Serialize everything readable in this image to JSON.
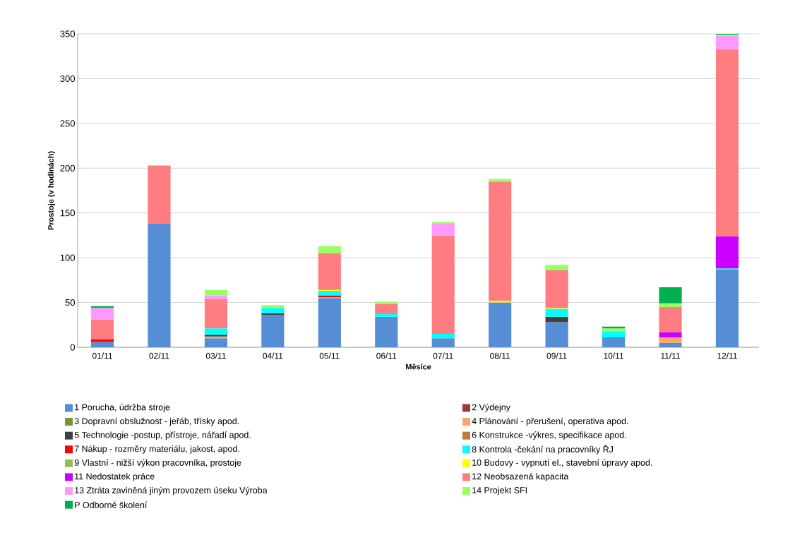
{
  "chart_data": {
    "type": "bar",
    "stacked": true,
    "xlabel": "Měsíce",
    "ylabel": "Prostoje  (v hodinách)",
    "categories": [
      "01/11",
      "02/11",
      "03/11",
      "04/11",
      "05/11",
      "06/11",
      "07/11",
      "08/11",
      "09/11",
      "10/11",
      "11/11",
      "12/11"
    ],
    "ylim": [
      0,
      350
    ],
    "yticks": [
      0,
      50,
      100,
      150,
      200,
      250,
      300,
      350
    ],
    "grid": "y",
    "legend": "bottom",
    "series": [
      {
        "name": "1 Porucha,  údržba stroje",
        "color": "#558ed5",
        "values": [
          6,
          138,
          10,
          36,
          55,
          34,
          10,
          50,
          28,
          11,
          5,
          87
        ]
      },
      {
        "name": "2 Výdejny",
        "color": "#9b3b3b",
        "values": [
          null,
          null,
          null,
          null,
          null,
          null,
          null,
          null,
          null,
          null,
          null,
          null
        ]
      },
      {
        "name": "3 Dopravní obslužnost  - jeřáb,  třísky apod.",
        "color": "#77933c",
        "values": [
          null,
          null,
          null,
          null,
          null,
          null,
          null,
          null,
          null,
          null,
          null,
          null
        ]
      },
      {
        "name": "4 Plánování  - přerušení,  operativa apod.",
        "color": "#f9a66c",
        "values": [
          null,
          null,
          2,
          null,
          1,
          null,
          null,
          null,
          null,
          null,
          6,
          null
        ]
      },
      {
        "name": "5 Technologie  -postup, přístroje,  nářadí apod.",
        "color": "#404040",
        "values": [
          null,
          null,
          2,
          2,
          null,
          null,
          null,
          null,
          6,
          null,
          null,
          null
        ]
      },
      {
        "name": "6 Konstrukce  -výkres,  specifikace apod.",
        "color": "#c0783c",
        "values": [
          null,
          null,
          null,
          null,
          null,
          null,
          null,
          null,
          null,
          null,
          null,
          null
        ]
      },
      {
        "name": "7 Nákup  - rozměry materiálu,  jakost, apod.",
        "color": "#ff0000",
        "values": [
          3,
          null,
          null,
          null,
          2,
          null,
          null,
          null,
          null,
          null,
          null,
          null
        ]
      },
      {
        "name": "8 Kontrola  -čekání  na pracovníky  ŘJ",
        "color": "#00ffff",
        "values": [
          null,
          null,
          7,
          6,
          5,
          3,
          5,
          null,
          9,
          7,
          null,
          1
        ]
      },
      {
        "name": "9 Vlastní - nižší výkon  pracovníka,  prostoje",
        "color": "#9bbb59",
        "values": [
          null,
          null,
          null,
          null,
          null,
          null,
          null,
          null,
          null,
          null,
          null,
          null
        ]
      },
      {
        "name": "10 Budovy  - vypnutí  el., stavební  úpravy apod.",
        "color": "#ffff00",
        "values": [
          null,
          null,
          null,
          null,
          1,
          null,
          null,
          2,
          1,
          null,
          null,
          null
        ]
      },
      {
        "name": "11 Nedostatek  práce",
        "color": "#cc00ff",
        "values": [
          null,
          null,
          null,
          null,
          null,
          null,
          null,
          null,
          null,
          null,
          6,
          36
        ]
      },
      {
        "name": "12 Neobsazená kapacita",
        "color": "#ff7c80",
        "values": [
          22,
          65,
          33,
          null,
          41,
          11,
          110,
          133,
          42,
          null,
          28,
          209
        ]
      },
      {
        "name": "13 Ztráta zaviněná jiným  provozem úseku Výroba",
        "color": "#ff99ff",
        "values": [
          13,
          null,
          4,
          null,
          null,
          null,
          13,
          null,
          null,
          null,
          null,
          15
        ]
      },
      {
        "name": "14 Projekt  SFI",
        "color": "#99ff66",
        "values": [
          null,
          null,
          6,
          3,
          8,
          3,
          2,
          3,
          6,
          3,
          4,
          1
        ]
      },
      {
        "name": "P Odborné  školení",
        "color": "#00b050",
        "values": [
          2,
          null,
          null,
          null,
          null,
          null,
          null,
          null,
          null,
          2,
          18,
          1
        ]
      }
    ]
  }
}
